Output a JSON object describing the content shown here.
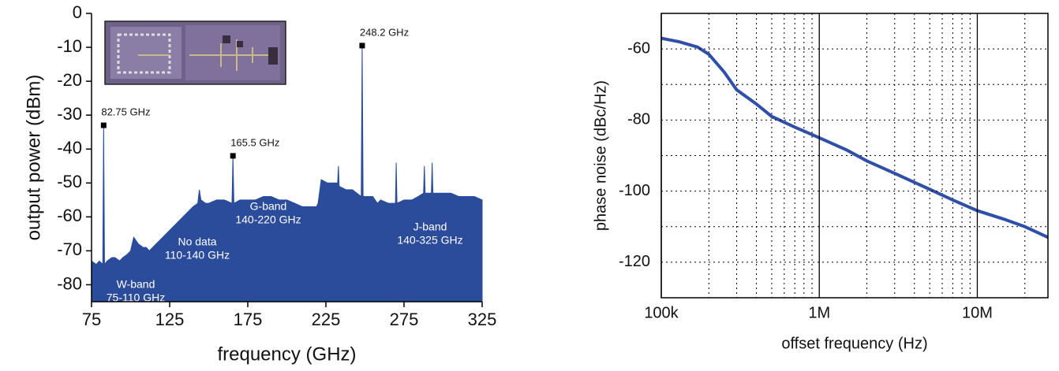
{
  "chart_data": [
    {
      "type": "area",
      "color": "#2b4b9b",
      "x": [
        75,
        78,
        80,
        82.2,
        82.75,
        83.3,
        85,
        88,
        90,
        93,
        95,
        98,
        100,
        102,
        105,
        108,
        110,
        112,
        140,
        143,
        144,
        145,
        148,
        150,
        155,
        160,
        164.9,
        165.5,
        166.1,
        170,
        175,
        180,
        185,
        190,
        195,
        200,
        205,
        210,
        215,
        219,
        220,
        222,
        226,
        230,
        232.5,
        233,
        233.5,
        238,
        242,
        247.6,
        248.2,
        248.8,
        252,
        255,
        258,
        260,
        265,
        269.5,
        270,
        270.5,
        275,
        280,
        284,
        287.5,
        288,
        288.5,
        292.5,
        293,
        293.5,
        298,
        300,
        305,
        310,
        315,
        320,
        325
      ],
      "values": [
        -73,
        -74,
        -73,
        -74,
        -33,
        -74,
        -73,
        -72,
        -72,
        -73,
        -72,
        -71,
        -70,
        -66,
        -68,
        -69,
        -69,
        -70,
        -57,
        -56,
        -52,
        -55,
        -56,
        -56,
        -55,
        -55,
        -56,
        -42,
        -56,
        -55,
        -55,
        -55,
        -54,
        -54,
        -55,
        -55,
        -56,
        -57,
        -57,
        -57,
        -56,
        -49,
        -50,
        -50,
        -50,
        -45,
        -51,
        -52,
        -52,
        -54,
        -9.5,
        -54,
        -54,
        -54,
        -56,
        -55,
        -56,
        -56,
        -44,
        -56,
        -55,
        -55,
        -54,
        -53,
        -45,
        -53,
        -53,
        -44,
        -53,
        -53,
        -53,
        -53,
        -54,
        -54,
        -54,
        -55
      ],
      "peak_x": [
        82.75,
        165.5,
        248.2
      ],
      "peak_values": [
        -33,
        -42,
        -9.5
      ],
      "peak_labels": [
        "82.75 GHz",
        "165.5 GHz",
        "248.2 GHz"
      ],
      "annotations": [
        [
          "W-band",
          "75-110 GHz"
        ],
        [
          "No data",
          "110-140 GHz"
        ],
        [
          "G-band",
          "140-220 GHz"
        ],
        [
          "J-band",
          "140-325 GHz"
        ]
      ],
      "xlabel": "frequency (GHz)",
      "ylabel": "output power (dBm)",
      "xlim": [
        75,
        325
      ],
      "ylim": [
        -85,
        0
      ],
      "xticks": [
        75,
        125,
        175,
        225,
        275,
        325
      ],
      "yticks": [
        0,
        -10,
        -20,
        -30,
        -40,
        -50,
        -60,
        -70,
        -80
      ]
    },
    {
      "type": "line",
      "color": "#2f4fa8",
      "log_x": true,
      "x": [
        100000,
        130000,
        170000,
        200000,
        250000,
        300000,
        400000,
        500000,
        700000,
        1000000,
        1500000,
        2000000,
        3000000,
        5000000,
        7000000,
        10000000,
        15000000,
        20000000,
        28000000
      ],
      "values": [
        -57,
        -58,
        -59.5,
        -61.5,
        -66.5,
        -71.5,
        -75.5,
        -79,
        -82,
        -85,
        -88.5,
        -91.5,
        -95,
        -99.5,
        -102.5,
        -105.5,
        -108,
        -110,
        -113
      ],
      "xlabel": "offset frequency (Hz)",
      "ylabel": "phase noise (dBc/Hz)",
      "xlim": [
        100000,
        28000000
      ],
      "ylim": [
        -130,
        -50
      ],
      "xticks": [
        {
          "value": 100000,
          "label": "100k"
        },
        {
          "value": 1000000,
          "label": "1M"
        },
        {
          "value": 10000000,
          "label": "10M"
        }
      ],
      "yticks": [
        -60,
        -80,
        -100,
        -120
      ],
      "yminor": [
        -70,
        -90,
        -110
      ],
      "xminor": [
        200000,
        300000,
        400000,
        500000,
        600000,
        700000,
        800000,
        900000,
        2000000,
        3000000,
        4000000,
        5000000,
        6000000,
        7000000,
        8000000,
        9000000,
        20000000
      ]
    }
  ]
}
